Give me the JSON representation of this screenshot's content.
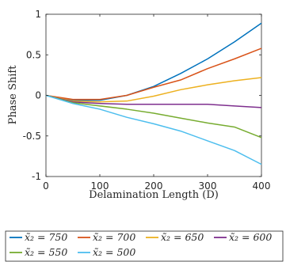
{
  "chart_data": {
    "type": "line",
    "xlabel": "Delamination Length (D)",
    "ylabel": "Phase Shift",
    "xlim": [
      0,
      400
    ],
    "ylim": [
      -1,
      1
    ],
    "xticks": [
      "0",
      "100",
      "200",
      "300",
      "400"
    ],
    "yticks": [
      "-1",
      "-0.5",
      "0",
      "0.5",
      "1"
    ],
    "grid": false,
    "legend_placement": "bottom",
    "x": [
      0,
      50,
      100,
      150,
      200,
      250,
      300,
      350,
      400
    ],
    "series": [
      {
        "name": "x̃₂ = 750",
        "color": "#0072BD",
        "values": [
          0,
          -0.06,
          -0.06,
          0.0,
          0.11,
          0.27,
          0.45,
          0.66,
          0.89
        ]
      },
      {
        "name": "x̃₂ = 700",
        "color": "#D95319",
        "values": [
          0,
          -0.05,
          -0.05,
          0.0,
          0.1,
          0.19,
          0.33,
          0.45,
          0.58
        ]
      },
      {
        "name": "x̃₂ = 650",
        "color": "#EDB120",
        "values": [
          0,
          -0.07,
          -0.08,
          -0.07,
          -0.01,
          0.07,
          0.13,
          0.18,
          0.22
        ]
      },
      {
        "name": "x̃₂ = 600",
        "color": "#7E2F8E",
        "values": [
          0,
          -0.08,
          -0.1,
          -0.11,
          -0.11,
          -0.11,
          -0.11,
          -0.13,
          -0.15
        ]
      },
      {
        "name": "x̃₂ = 550",
        "color": "#77AC30",
        "values": [
          0,
          -0.09,
          -0.13,
          -0.17,
          -0.22,
          -0.28,
          -0.34,
          -0.39,
          -0.52
        ]
      },
      {
        "name": "x̃₂ = 500",
        "color": "#4DBEEE",
        "values": [
          0,
          -0.1,
          -0.17,
          -0.27,
          -0.35,
          -0.44,
          -0.56,
          -0.68,
          -0.85
        ]
      }
    ]
  }
}
